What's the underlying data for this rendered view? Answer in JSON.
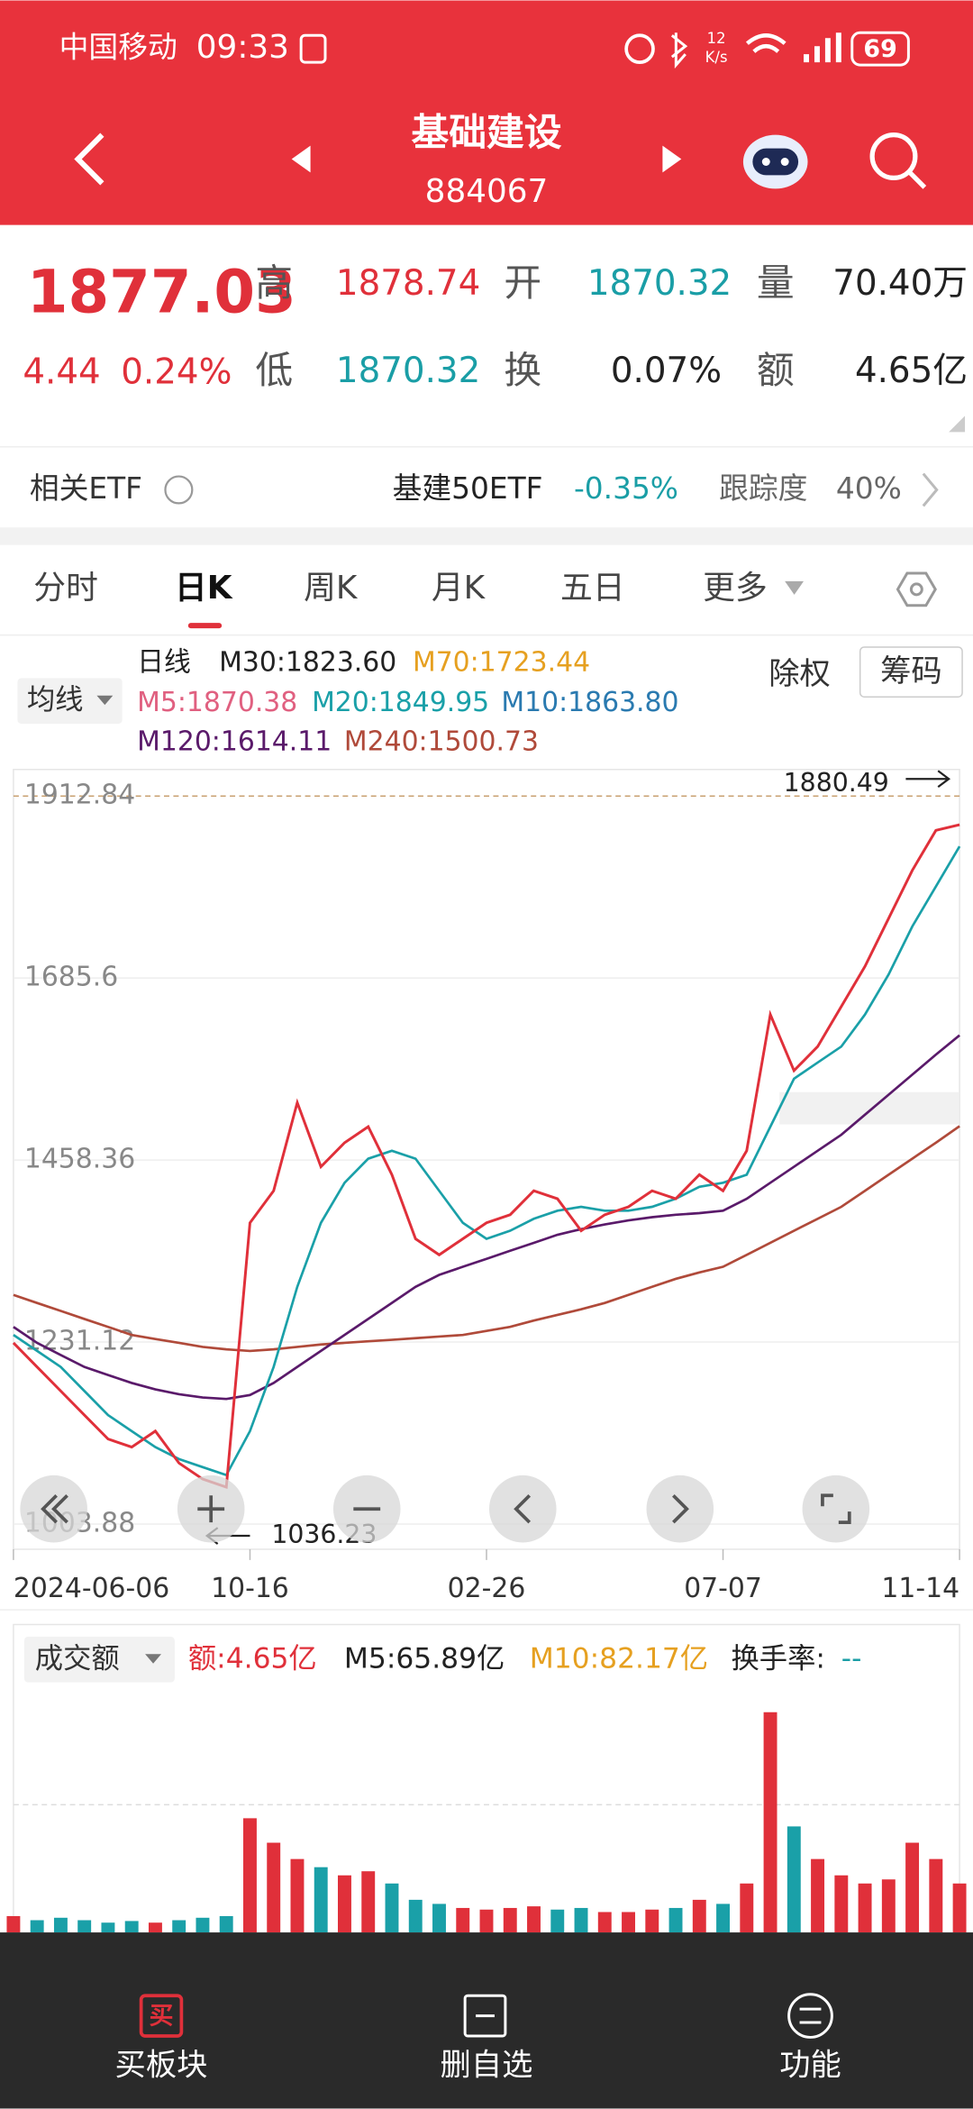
{
  "status": {
    "carrier": "中国移动",
    "time": "09:33",
    "speed": "12",
    "speed_unit": "K/s",
    "battery": "69"
  },
  "header": {
    "title": "基础建设",
    "code": "884067"
  },
  "quote": {
    "price": "1877.03",
    "change": "4.44",
    "change_pct": "0.24%",
    "high_label": "高",
    "high": "1878.74",
    "open_label": "开",
    "open": "1870.32",
    "volume_label": "量",
    "volume": "70.40万",
    "low_label": "低",
    "low": "1870.32",
    "turnover_label": "换",
    "turnover": "0.07%",
    "amount_label": "额",
    "amount": "4.65亿"
  },
  "etf": {
    "label": "相关ETF",
    "name": "基建50ETF",
    "change": "-0.35%",
    "track_label": "跟踪度",
    "track": "40%"
  },
  "tabs": [
    "分时",
    "日K",
    "周K",
    "月K",
    "五日",
    "更多"
  ],
  "ma_legend": {
    "selector": "均线",
    "period": "日线",
    "m30": "M30:1823.60",
    "m70": "M70:1723.44",
    "m5": "M5:1870.38",
    "m20": "M20:1849.95",
    "m10": "M10:1863.80",
    "m120": "M120:1614.11",
    "m240": "M240:1500.73",
    "exright": "除权",
    "chips": "筹码"
  },
  "chart_data": [
    {
      "type": "line",
      "categories": [
        "2024-06-06",
        null,
        null,
        null,
        null,
        null,
        null,
        null,
        null,
        null,
        "10-16",
        null,
        null,
        null,
        null,
        null,
        null,
        null,
        null,
        null,
        "02-26",
        null,
        null,
        null,
        null,
        null,
        null,
        null,
        null,
        null,
        "07-07",
        null,
        null,
        null,
        null,
        null,
        null,
        null,
        null,
        null,
        "11-14"
      ],
      "ylim": [
        972.4,
        1946.0
      ],
      "yticks": [
        1912.84,
        1685.6,
        1458.36,
        1231.12,
        1003.88
      ],
      "max_label": "1880.49",
      "min_label": "1036.23",
      "series": [
        {
          "color": "#b04a3a",
          "values": [
            1290,
            1280,
            1270,
            1260,
            1250,
            1240,
            1235,
            1230,
            1225,
            1222,
            1220,
            1222,
            1225,
            1228,
            1230,
            1232,
            1234,
            1236,
            1238,
            1240,
            1245,
            1250,
            1258,
            1265,
            1272,
            1280,
            1290,
            1300,
            1310,
            1318,
            1325,
            1340,
            1355,
            1370,
            1385,
            1400,
            1420,
            1440,
            1460,
            1480,
            1500.73
          ]
        },
        {
          "color": "#5a1a6a",
          "values": [
            1250,
            1230,
            1215,
            1200,
            1190,
            1180,
            1172,
            1166,
            1162,
            1160,
            1165,
            1180,
            1200,
            1220,
            1240,
            1260,
            1280,
            1300,
            1315,
            1325,
            1335,
            1345,
            1355,
            1365,
            1372,
            1378,
            1383,
            1387,
            1390,
            1392,
            1395,
            1410,
            1430,
            1450,
            1470,
            1490,
            1515,
            1540,
            1565,
            1590,
            1614.11
          ]
        },
        {
          "color": "#1aa0a8",
          "values": [
            1240,
            1220,
            1200,
            1170,
            1140,
            1120,
            1100,
            1085,
            1075,
            1065,
            1120,
            1200,
            1300,
            1380,
            1430,
            1460,
            1470,
            1460,
            1420,
            1380,
            1360,
            1370,
            1385,
            1395,
            1400,
            1395,
            1395,
            1400,
            1410,
            1425,
            1430,
            1440,
            1500,
            1560,
            1580,
            1600,
            1640,
            1690,
            1750,
            1800,
            1849.95
          ]
        },
        {
          "color": "#e0303a",
          "values": [
            1230,
            1200,
            1170,
            1140,
            1110,
            1100,
            1120,
            1080,
            1060,
            1050,
            1380,
            1420,
            1530,
            1450,
            1480,
            1500,
            1440,
            1360,
            1340,
            1360,
            1380,
            1390,
            1420,
            1410,
            1370,
            1390,
            1400,
            1420,
            1410,
            1440,
            1420,
            1470,
            1640,
            1570,
            1600,
            1650,
            1700,
            1760,
            1820,
            1870,
            1877.03
          ]
        }
      ]
    },
    {
      "type": "bar",
      "ylim": [
        0,
        300
      ],
      "values": [
        20,
        15,
        18,
        15,
        12,
        14,
        12,
        15,
        18,
        20,
        140,
        110,
        90,
        80,
        70,
        75,
        60,
        40,
        35,
        30,
        28,
        30,
        32,
        28,
        30,
        25,
        25,
        28,
        30,
        40,
        35,
        60,
        270,
        130,
        90,
        70,
        60,
        65,
        110,
        90,
        60
      ],
      "up_color": "#e0303a",
      "down_color": "#1aa0a8"
    }
  ],
  "volume_legend": {
    "selector": "成交额",
    "amount": "额:4.65亿",
    "m5": "M5:65.89亿",
    "m10": "M10:82.17亿",
    "turnover": "换手率:",
    "turnover_value": "--"
  },
  "nav": [
    {
      "icon": "买",
      "label": "买板块"
    },
    {
      "label": "删自选"
    },
    {
      "label": "功能"
    }
  ]
}
